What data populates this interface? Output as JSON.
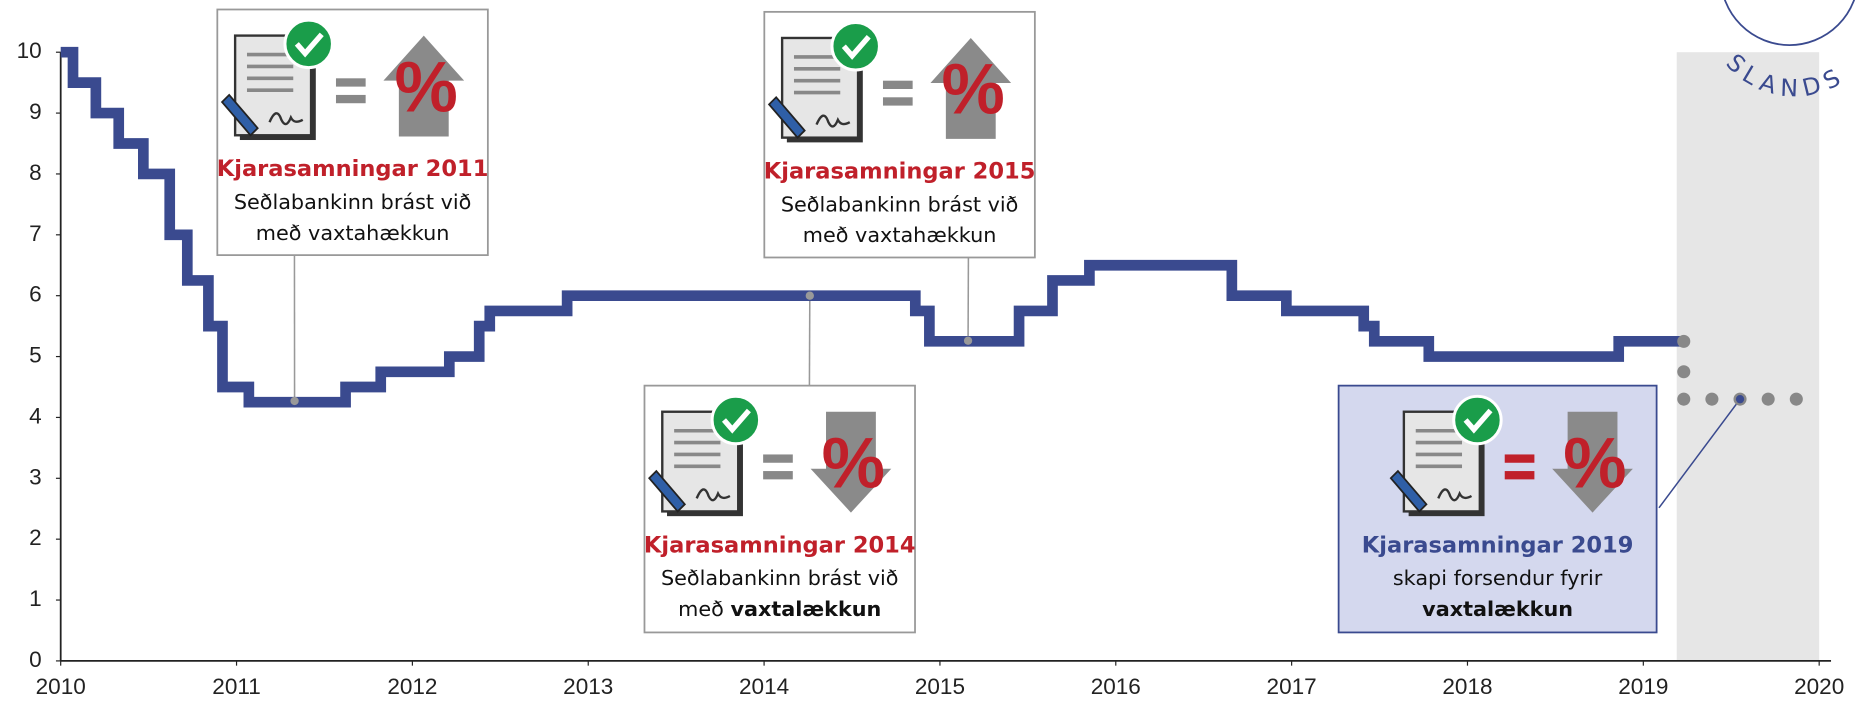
{
  "chart_data": {
    "type": "line",
    "xlim": [
      2010,
      2020
    ],
    "xticks": [
      2010,
      2011,
      2012,
      2013,
      2014,
      2015,
      2016,
      2017,
      2018,
      2019,
      2020
    ],
    "ylim": [
      0,
      10
    ],
    "yticks": [
      0,
      1,
      2,
      3,
      4,
      5,
      6,
      7,
      8,
      9,
      10
    ],
    "forecast_span": [
      2019.19,
      2020
    ],
    "logo_text": "SLANDS",
    "series": [
      {
        "color": "#3a4a8f",
        "style": "step",
        "x": [
          2010.0,
          2010.07,
          2010.2,
          2010.33,
          2010.47,
          2010.62,
          2010.72,
          2010.84,
          2010.92,
          2011.07,
          2011.62,
          2011.82,
          2012.21,
          2012.38,
          2012.44,
          2012.88,
          2014.86,
          2014.94,
          2015.45,
          2015.64,
          2015.85,
          2016.66,
          2016.97,
          2017.41,
          2017.47,
          2017.78,
          2018.86,
          2019.23
        ],
        "values": [
          10,
          9.5,
          9,
          8.5,
          8,
          7,
          6.25,
          5.5,
          4.5,
          4.25,
          4.5,
          4.75,
          5,
          5.5,
          5.75,
          6,
          5.75,
          5.25,
          5.75,
          6.25,
          6.5,
          6,
          5.75,
          5.5,
          5.25,
          5,
          5.25,
          5.25
        ]
      },
      {
        "color": "#888888",
        "style": "dots",
        "x": [
          2019.23,
          2019.23,
          2019.23,
          2019.39,
          2019.55,
          2019.71,
          2019.87
        ],
        "values": [
          5.25,
          4.75,
          4.3,
          4.3,
          4.3,
          4.3,
          4.3
        ]
      }
    ],
    "annotations": [
      {
        "title": "Kjarasamningar 2011",
        "lines": [
          [
            "Seðlabankinn brást við"
          ],
          [
            "með vaxtahækkun"
          ]
        ],
        "symbol": "%",
        "direction": "up",
        "x": 2011.33,
        "y": 4.27,
        "title_color": "#c0202a",
        "equals_color": "#888888",
        "box_fill": "#ffffff",
        "box_stroke": "#999999"
      },
      {
        "title": "Kjarasamningar 2015",
        "lines": [
          [
            "Seðlabankinn brást við"
          ],
          [
            "með vaxtahækkun"
          ]
        ],
        "symbol": "%",
        "direction": "up",
        "x": 2015.16,
        "y": 5.26,
        "title_color": "#c0202a",
        "equals_color": "#888888",
        "box_fill": "#ffffff",
        "box_stroke": "#999999"
      },
      {
        "title": "Kjarasamningar 2014",
        "lines": [
          [
            "Seðlabankinn brást við"
          ],
          [
            "með",
            {
              "text": "vaxtalækkun",
              "bold": true
            }
          ]
        ],
        "symbol": "%",
        "direction": "down",
        "x": 2014.26,
        "y": 6,
        "title_color": "#c0202a",
        "equals_color": "#888888",
        "box_fill": "#ffffff",
        "box_stroke": "#999999"
      },
      {
        "title": "Kjarasamningar 2019",
        "lines": [
          [
            "skapi forsendur fyrir"
          ],
          [
            {
              "text": "vaxtalækkun",
              "bold": true
            }
          ]
        ],
        "symbol": "%",
        "direction": "down",
        "x": 2019.55,
        "y": 4.3,
        "title_color": "#3a4a8f",
        "equals_color": "#c0202a",
        "box_fill": "#d4d8ee",
        "box_stroke": "#3a4a8f"
      }
    ]
  }
}
